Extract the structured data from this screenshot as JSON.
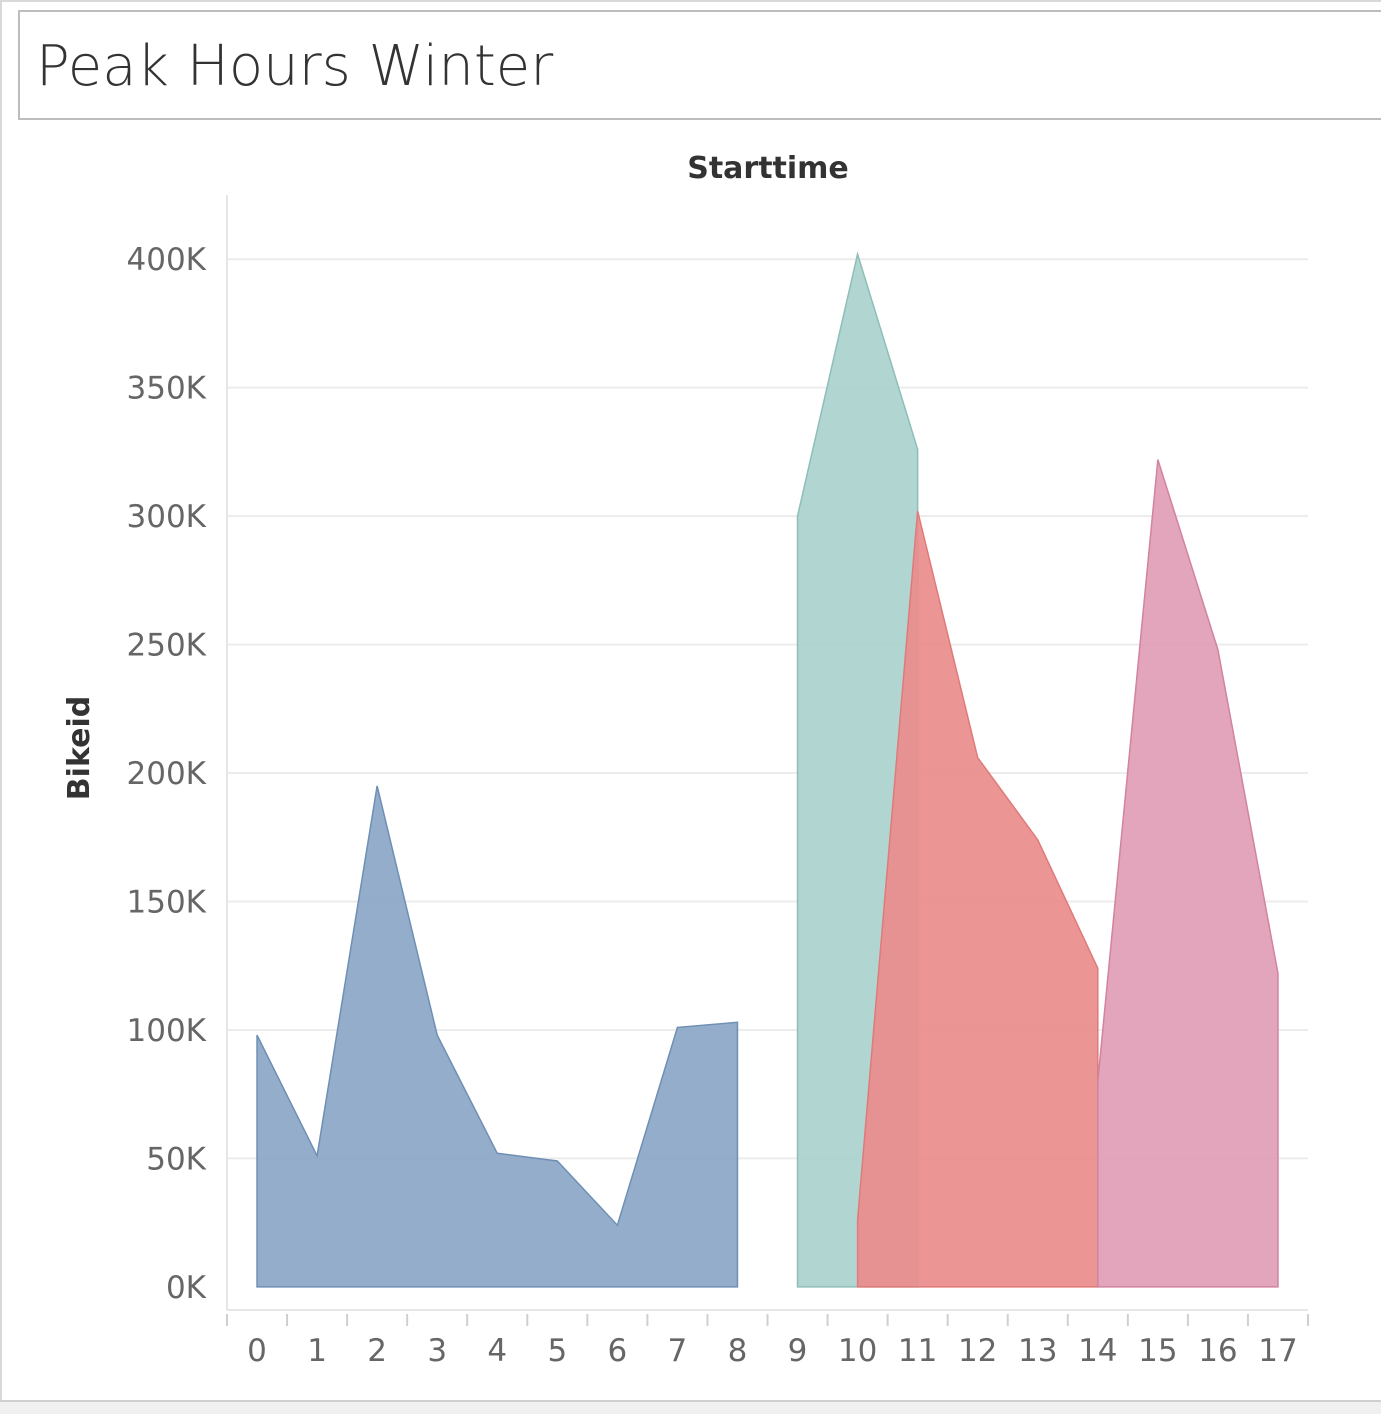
{
  "title": "Peak Hours Winter",
  "chart_data": {
    "type": "area",
    "xlabel": "Starttime",
    "ylabel": "Bikeid",
    "x_ticks": [
      "0",
      "1",
      "2",
      "3",
      "4",
      "5",
      "6",
      "7",
      "8",
      "9",
      "10",
      "11",
      "12",
      "13",
      "14",
      "15",
      "16",
      "17"
    ],
    "y_ticks": [
      {
        "value": 0,
        "label": "0K"
      },
      {
        "value": 50000,
        "label": "50K"
      },
      {
        "value": 100000,
        "label": "100K"
      },
      {
        "value": 150000,
        "label": "150K"
      },
      {
        "value": 200000,
        "label": "200K"
      },
      {
        "value": 250000,
        "label": "250K"
      },
      {
        "value": 300000,
        "label": "300K"
      },
      {
        "value": 350000,
        "label": "350K"
      },
      {
        "value": 400000,
        "label": "400K"
      }
    ],
    "xlim": [
      -0.5,
      17.5
    ],
    "ylim": [
      -9000,
      425000
    ],
    "grid": true,
    "series": [
      {
        "color": "#8aa6c6",
        "stroke": "#6f8fb5",
        "points": [
          [
            0,
            98000
          ],
          [
            1,
            51000
          ],
          [
            2,
            195000
          ],
          [
            3,
            98000
          ],
          [
            4,
            52000
          ],
          [
            5,
            49000
          ],
          [
            6,
            24000
          ],
          [
            7,
            101000
          ],
          [
            8,
            103000
          ]
        ]
      },
      {
        "color": "#aad1cc",
        "stroke": "#8fbeb8",
        "points": [
          [
            9,
            300000
          ],
          [
            10,
            402000
          ],
          [
            11,
            326000
          ]
        ]
      },
      {
        "color": "#ea8c8c",
        "stroke": "#e07a7a",
        "points": [
          [
            10,
            26000
          ],
          [
            11,
            302000
          ],
          [
            12,
            206000
          ],
          [
            13,
            174000
          ],
          [
            14,
            124000
          ]
        ]
      },
      {
        "color": "#df9db5",
        "stroke": "#d283a0",
        "points": [
          [
            14,
            80000
          ],
          [
            15,
            322000
          ],
          [
            16,
            248000
          ],
          [
            17,
            122000
          ]
        ]
      }
    ]
  }
}
